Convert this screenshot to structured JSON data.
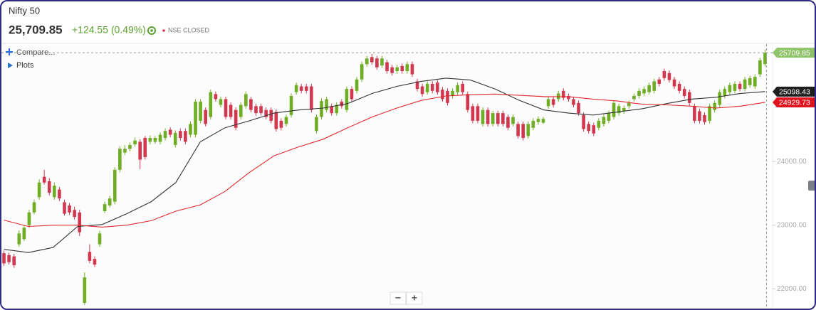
{
  "header": {
    "title": "Nifty 50",
    "price": "25,709.85",
    "change": "+124.55 (0.49%)",
    "status": "NSE CLOSED"
  },
  "controls": {
    "compare": "Compare...",
    "plots": "Plots",
    "zoom_out": "−",
    "zoom_in": "+"
  },
  "chart_data": {
    "type": "candlestick",
    "up_color": "#6fae24",
    "down_color": "#d1384f",
    "ylim": [
      21690,
      25845
    ],
    "yticks": [
      {
        "value": 22000,
        "label": "22000.00"
      },
      {
        "value": 23000,
        "label": "23000.00"
      },
      {
        "value": 24000,
        "label": "24000.00"
      }
    ],
    "ohlc": [
      [
        22560,
        22600,
        22360,
        22400
      ],
      [
        22530,
        22570,
        22380,
        22420
      ],
      [
        22510,
        22550,
        22330,
        22370
      ],
      [
        22700,
        22920,
        22660,
        22870
      ],
      [
        22780,
        23000,
        22750,
        22960
      ],
      [
        23000,
        23240,
        22960,
        23200
      ],
      [
        23200,
        23400,
        23170,
        23360
      ],
      [
        23440,
        23720,
        23400,
        23670
      ],
      [
        23760,
        23870,
        23640,
        23670
      ],
      [
        23690,
        23740,
        23470,
        23510
      ],
      [
        23440,
        23670,
        23400,
        23620
      ],
      [
        23560,
        23600,
        23380,
        23420
      ],
      [
        23360,
        23400,
        23150,
        23180
      ],
      [
        23310,
        23350,
        23160,
        23200
      ],
      [
        23240,
        23290,
        23090,
        23130
      ],
      [
        23200,
        23240,
        22830,
        22890
      ],
      [
        21780,
        22260,
        21750,
        22180
      ],
      [
        22580,
        22700,
        22400,
        22440
      ],
      [
        22470,
        22510,
        22340,
        22380
      ],
      [
        22700,
        22910,
        22660,
        22870
      ],
      [
        23220,
        23370,
        23190,
        23330
      ],
      [
        23310,
        23460,
        23280,
        23420
      ],
      [
        23370,
        23910,
        23330,
        23870
      ],
      [
        23870,
        24240,
        23830,
        24200
      ],
      [
        24140,
        24260,
        24100,
        24200
      ],
      [
        24200,
        24300,
        24160,
        24260
      ],
      [
        24270,
        24380,
        24230,
        24330
      ],
      [
        24310,
        24350,
        23880,
        24030
      ],
      [
        24370,
        24400,
        24030,
        24070
      ],
      [
        24310,
        24410,
        24270,
        24370
      ],
      [
        24310,
        24400,
        24280,
        24370
      ],
      [
        24310,
        24460,
        24270,
        24420
      ],
      [
        24370,
        24520,
        24330,
        24480
      ],
      [
        24500,
        24540,
        24380,
        24420
      ],
      [
        24260,
        24490,
        24220,
        24450
      ],
      [
        24480,
        24520,
        24330,
        24370
      ],
      [
        24480,
        24520,
        24270,
        24310
      ],
      [
        24420,
        24630,
        24380,
        24590
      ],
      [
        24420,
        24980,
        24380,
        24940
      ],
      [
        24640,
        24980,
        24600,
        24940
      ],
      [
        24810,
        24850,
        24550,
        24590
      ],
      [
        24700,
        25130,
        24660,
        25090
      ],
      [
        25060,
        25100,
        24940,
        24980
      ],
      [
        24890,
        25020,
        24850,
        24980
      ],
      [
        24980,
        25020,
        24660,
        24700
      ],
      [
        24890,
        24930,
        24660,
        24700
      ],
      [
        24810,
        24850,
        24490,
        24530
      ],
      [
        24700,
        24930,
        24660,
        24890
      ],
      [
        24870,
        25100,
        24830,
        25060
      ],
      [
        24980,
        25020,
        24770,
        24810
      ],
      [
        24870,
        24910,
        24720,
        24760
      ],
      [
        24870,
        24910,
        24720,
        24760
      ],
      [
        24810,
        24850,
        24660,
        24700
      ],
      [
        24810,
        24850,
        24600,
        24640
      ],
      [
        24780,
        24820,
        24470,
        24510
      ],
      [
        24640,
        24680,
        24490,
        24530
      ],
      [
        24590,
        24740,
        24550,
        24700
      ],
      [
        24730,
        25070,
        24690,
        25030
      ],
      [
        25090,
        25240,
        25050,
        25200
      ],
      [
        25180,
        25220,
        25070,
        25110
      ],
      [
        25180,
        25220,
        25070,
        25110
      ],
      [
        25180,
        25220,
        24770,
        24810
      ],
      [
        24480,
        24740,
        24440,
        24700
      ],
      [
        24700,
        24990,
        24660,
        24950
      ],
      [
        24810,
        25020,
        24770,
        24980
      ],
      [
        24870,
        24910,
        24720,
        24760
      ],
      [
        24760,
        24930,
        24720,
        24890
      ],
      [
        24940,
        24980,
        24830,
        24870
      ],
      [
        24810,
        25180,
        24770,
        25140
      ],
      [
        25140,
        25180,
        24940,
        24980
      ],
      [
        25110,
        25330,
        25070,
        25290
      ],
      [
        25290,
        25570,
        25250,
        25530
      ],
      [
        25530,
        25660,
        25490,
        25620
      ],
      [
        25640,
        25690,
        25520,
        25560
      ],
      [
        25620,
        25660,
        25440,
        25480
      ],
      [
        25510,
        25660,
        25470,
        25620
      ],
      [
        25560,
        25600,
        25380,
        25420
      ],
      [
        25480,
        25520,
        25350,
        25390
      ],
      [
        25420,
        25520,
        25380,
        25480
      ],
      [
        25500,
        25540,
        25380,
        25420
      ],
      [
        25420,
        25570,
        25380,
        25530
      ],
      [
        25530,
        25570,
        25330,
        25370
      ],
      [
        25260,
        25300,
        25100,
        25140
      ],
      [
        25180,
        25220,
        25020,
        25060
      ],
      [
        25090,
        25260,
        25050,
        25220
      ],
      [
        25220,
        25260,
        25070,
        25110
      ],
      [
        25240,
        25280,
        25050,
        25090
      ],
      [
        25130,
        25170,
        24940,
        24980
      ],
      [
        25110,
        25150,
        24880,
        24920
      ],
      [
        25030,
        25150,
        24990,
        25110
      ],
      [
        25090,
        25240,
        25050,
        25200
      ],
      [
        25220,
        25260,
        25050,
        25090
      ],
      [
        25060,
        25100,
        24770,
        24810
      ],
      [
        24870,
        24910,
        24600,
        24640
      ],
      [
        24870,
        24910,
        24600,
        24640
      ],
      [
        24590,
        24850,
        24550,
        24810
      ],
      [
        24810,
        24850,
        24550,
        24590
      ],
      [
        24590,
        24800,
        24550,
        24760
      ],
      [
        24760,
        24800,
        24550,
        24590
      ],
      [
        24760,
        24800,
        24550,
        24590
      ],
      [
        24700,
        24740,
        24490,
        24530
      ],
      [
        24590,
        24740,
        24550,
        24700
      ],
      [
        24590,
        24630,
        24360,
        24400
      ],
      [
        24590,
        24630,
        24330,
        24370
      ],
      [
        24400,
        24630,
        24360,
        24590
      ],
      [
        24530,
        24680,
        24490,
        24640
      ],
      [
        24620,
        24710,
        24580,
        24670
      ],
      [
        24610,
        24700,
        24590,
        24670
      ],
      [
        24870,
        25020,
        24830,
        24980
      ],
      [
        24980,
        25020,
        24850,
        24890
      ],
      [
        24980,
        25110,
        24940,
        25070
      ],
      [
        25110,
        25150,
        24960,
        25000
      ],
      [
        25030,
        25070,
        24940,
        24980
      ],
      [
        24980,
        25020,
        24850,
        24890
      ],
      [
        24920,
        24960,
        24720,
        24760
      ],
      [
        24730,
        24770,
        24470,
        24510
      ],
      [
        24590,
        24630,
        24440,
        24480
      ],
      [
        24570,
        24610,
        24400,
        24440
      ],
      [
        24530,
        24680,
        24490,
        24640
      ],
      [
        24590,
        24740,
        24550,
        24700
      ],
      [
        24640,
        24800,
        24600,
        24760
      ],
      [
        24700,
        24960,
        24660,
        24920
      ],
      [
        24760,
        24910,
        24720,
        24870
      ],
      [
        24790,
        24880,
        24750,
        24840
      ],
      [
        24870,
        24960,
        24830,
        24920
      ],
      [
        24980,
        25070,
        24940,
        25030
      ],
      [
        25030,
        25150,
        24990,
        25110
      ],
      [
        25070,
        25180,
        25030,
        25140
      ],
      [
        25090,
        25240,
        25050,
        25200
      ],
      [
        25110,
        25300,
        25070,
        25260
      ],
      [
        25290,
        25330,
        25180,
        25220
      ],
      [
        25420,
        25460,
        25270,
        25310
      ],
      [
        25390,
        25430,
        25240,
        25280
      ],
      [
        25290,
        25330,
        25140,
        25180
      ],
      [
        25220,
        25260,
        25070,
        25110
      ],
      [
        25140,
        25180,
        24990,
        25030
      ],
      [
        25090,
        25130,
        24880,
        24920
      ],
      [
        24870,
        24910,
        24600,
        24640
      ],
      [
        24790,
        24830,
        24600,
        24640
      ],
      [
        24730,
        24770,
        24580,
        24620
      ],
      [
        24640,
        24910,
        24600,
        24870
      ],
      [
        24810,
        24960,
        24770,
        24920
      ],
      [
        24890,
        25130,
        24850,
        25090
      ],
      [
        25030,
        25180,
        24990,
        25140
      ],
      [
        25090,
        25240,
        25050,
        25200
      ],
      [
        25110,
        25260,
        25070,
        25220
      ],
      [
        25220,
        25260,
        25100,
        25140
      ],
      [
        25140,
        25330,
        25100,
        25290
      ],
      [
        25200,
        25350,
        25160,
        25310
      ],
      [
        25180,
        25370,
        25140,
        25330
      ],
      [
        25370,
        25630,
        25330,
        25590
      ],
      [
        25530,
        25760,
        25490,
        25709.85
      ]
    ],
    "series": [
      {
        "color": "#333333",
        "label_bg": "#1e1e1e",
        "values": [
          22620,
          22570,
          22650,
          22980,
          23010,
          23180,
          23370,
          23670,
          24310,
          24530,
          24640,
          24760,
          24810,
          24840,
          24910,
          25070,
          25180,
          25260,
          25310,
          25280,
          25140,
          24960,
          24810,
          24760,
          24730,
          24780,
          24830,
          24910,
          24980,
          25010,
          25070,
          25098.43
        ]
      },
      {
        "color": "#e0282c",
        "label_bg": "#e0141e",
        "values": [
          23080,
          22980,
          23000,
          23000,
          22970,
          23000,
          23070,
          23220,
          23320,
          23530,
          23830,
          24090,
          24230,
          24350,
          24530,
          24700,
          24840,
          24960,
          25030,
          25050,
          25060,
          25040,
          25020,
          25020,
          24980,
          24950,
          24900,
          24890,
          24870,
          24840,
          24870,
          24929.73
        ]
      }
    ]
  }
}
